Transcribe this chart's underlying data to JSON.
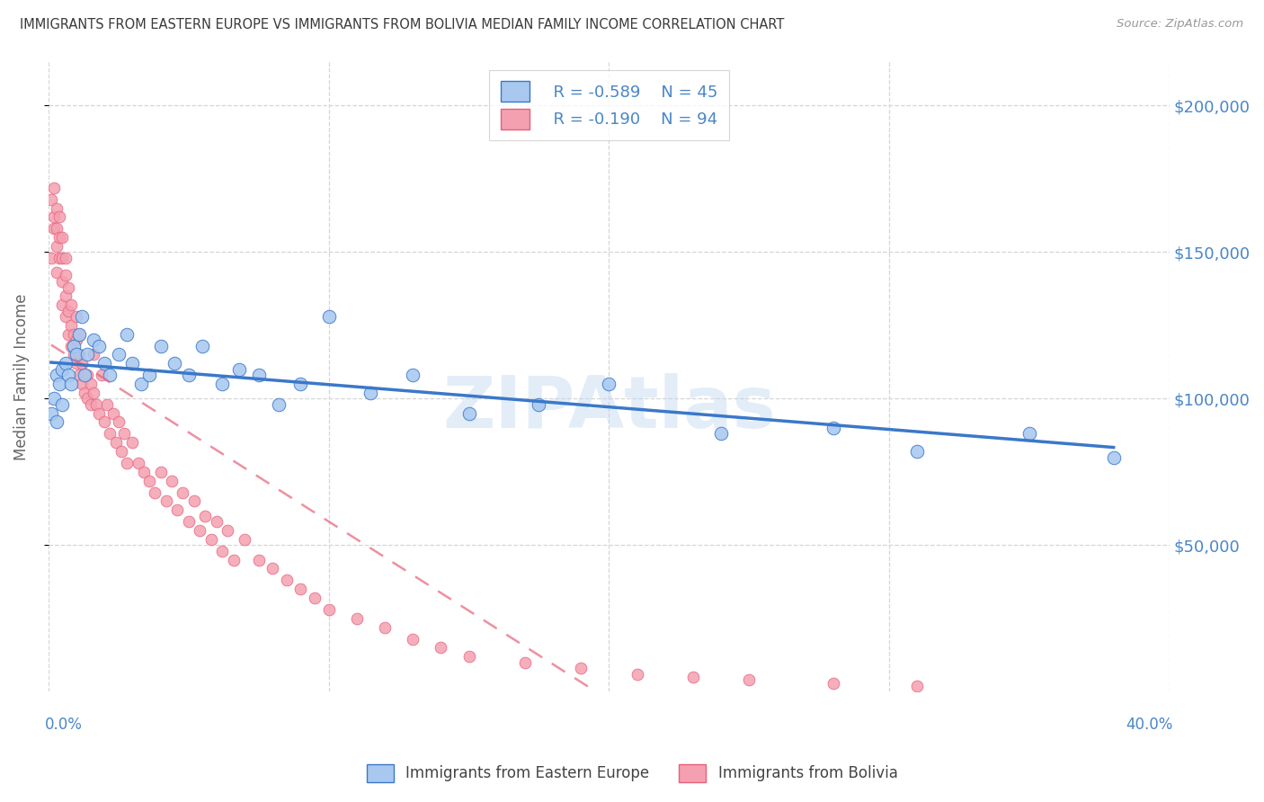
{
  "title": "IMMIGRANTS FROM EASTERN EUROPE VS IMMIGRANTS FROM BOLIVIA MEDIAN FAMILY INCOME CORRELATION CHART",
  "source": "Source: ZipAtlas.com",
  "ylabel": "Median Family Income",
  "yticks": [
    50000,
    100000,
    150000,
    200000
  ],
  "ytick_labels": [
    "$50,000",
    "$100,000",
    "$150,000",
    "$200,000"
  ],
  "xlim": [
    0.0,
    0.4
  ],
  "ylim": [
    0,
    215000
  ],
  "watermark": "ZIPAtlas",
  "legend_blue_r": "R = -0.589",
  "legend_blue_n": "N = 45",
  "legend_pink_r": "R = -0.190",
  "legend_pink_n": "N = 94",
  "blue_color": "#a8c8f0",
  "pink_color": "#f4a0b0",
  "blue_line_color": "#3a78c9",
  "pink_line_color": "#e8607a",
  "title_color": "#444444",
  "axis_color": "#4a86c8",
  "blue_x": [
    0.001,
    0.002,
    0.003,
    0.003,
    0.004,
    0.005,
    0.005,
    0.006,
    0.007,
    0.008,
    0.009,
    0.01,
    0.011,
    0.012,
    0.013,
    0.014,
    0.016,
    0.018,
    0.02,
    0.022,
    0.025,
    0.028,
    0.03,
    0.033,
    0.036,
    0.04,
    0.045,
    0.05,
    0.055,
    0.062,
    0.068,
    0.075,
    0.082,
    0.09,
    0.1,
    0.115,
    0.13,
    0.15,
    0.175,
    0.2,
    0.24,
    0.28,
    0.31,
    0.35,
    0.38
  ],
  "blue_y": [
    95000,
    100000,
    92000,
    108000,
    105000,
    110000,
    98000,
    112000,
    108000,
    105000,
    118000,
    115000,
    122000,
    128000,
    108000,
    115000,
    120000,
    118000,
    112000,
    108000,
    115000,
    122000,
    112000,
    105000,
    108000,
    118000,
    112000,
    108000,
    118000,
    105000,
    110000,
    108000,
    98000,
    105000,
    128000,
    102000,
    108000,
    95000,
    98000,
    105000,
    88000,
    90000,
    82000,
    88000,
    80000
  ],
  "pink_x": [
    0.001,
    0.001,
    0.002,
    0.002,
    0.002,
    0.003,
    0.003,
    0.003,
    0.003,
    0.004,
    0.004,
    0.004,
    0.005,
    0.005,
    0.005,
    0.005,
    0.006,
    0.006,
    0.006,
    0.006,
    0.007,
    0.007,
    0.007,
    0.008,
    0.008,
    0.008,
    0.009,
    0.009,
    0.01,
    0.01,
    0.01,
    0.011,
    0.011,
    0.011,
    0.012,
    0.012,
    0.013,
    0.013,
    0.014,
    0.014,
    0.015,
    0.015,
    0.016,
    0.016,
    0.017,
    0.018,
    0.019,
    0.02,
    0.021,
    0.022,
    0.023,
    0.024,
    0.025,
    0.026,
    0.027,
    0.028,
    0.03,
    0.032,
    0.034,
    0.036,
    0.038,
    0.04,
    0.042,
    0.044,
    0.046,
    0.048,
    0.05,
    0.052,
    0.054,
    0.056,
    0.058,
    0.06,
    0.062,
    0.064,
    0.066,
    0.07,
    0.075,
    0.08,
    0.085,
    0.09,
    0.095,
    0.1,
    0.11,
    0.12,
    0.13,
    0.14,
    0.15,
    0.17,
    0.19,
    0.21,
    0.23,
    0.25,
    0.28,
    0.31
  ],
  "pink_y": [
    148000,
    168000,
    158000,
    162000,
    172000,
    143000,
    152000,
    158000,
    165000,
    148000,
    155000,
    162000,
    132000,
    140000,
    148000,
    155000,
    128000,
    135000,
    142000,
    148000,
    122000,
    130000,
    138000,
    118000,
    125000,
    132000,
    115000,
    122000,
    112000,
    120000,
    128000,
    108000,
    115000,
    122000,
    105000,
    112000,
    102000,
    108000,
    100000,
    108000,
    98000,
    105000,
    115000,
    102000,
    98000,
    95000,
    108000,
    92000,
    98000,
    88000,
    95000,
    85000,
    92000,
    82000,
    88000,
    78000,
    85000,
    78000,
    75000,
    72000,
    68000,
    75000,
    65000,
    72000,
    62000,
    68000,
    58000,
    65000,
    55000,
    60000,
    52000,
    58000,
    48000,
    55000,
    45000,
    52000,
    45000,
    42000,
    38000,
    35000,
    32000,
    28000,
    25000,
    22000,
    18000,
    15000,
    12000,
    10000,
    8000,
    6000,
    5000,
    4000,
    3000,
    2000
  ]
}
